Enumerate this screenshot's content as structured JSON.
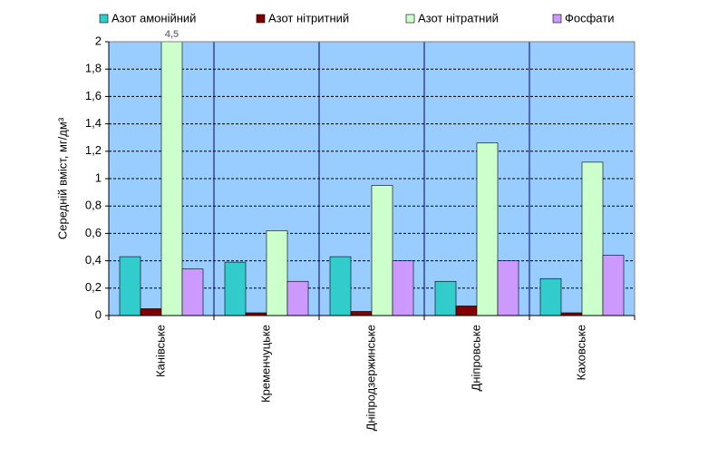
{
  "chart_data": {
    "type": "bar",
    "y_label": "Середній вміст, мг/дм³",
    "categories": [
      "Канівське",
      "Кременчуцьке",
      "Дніпродзержинське",
      "Дніпровське",
      "Каховське"
    ],
    "series": [
      {
        "name": "Азот амонійний",
        "color": "#33cccc",
        "values": [
          0.43,
          0.39,
          0.43,
          0.25,
          0.27
        ]
      },
      {
        "name": "Азот нітритний",
        "color": "#800000",
        "values": [
          0.05,
          0.02,
          0.03,
          0.07,
          0.02
        ]
      },
      {
        "name": "Азот нітратний",
        "color": "#ccffcc",
        "values": [
          4.5,
          0.62,
          0.95,
          1.26,
          1.12
        ],
        "value_labels": [
          "4,5",
          null,
          null,
          null,
          null
        ]
      },
      {
        "name": "Фосфати",
        "color": "#cc99ff",
        "values": [
          0.34,
          0.25,
          0.4,
          0.4,
          0.44
        ]
      }
    ],
    "ylim": [
      0,
      2
    ],
    "yticks": [
      0,
      {
        "value": 0.2,
        "label": "0,2"
      },
      {
        "value": 0.4,
        "label": "0,4"
      },
      {
        "value": 0.6,
        "label": "0,6"
      },
      {
        "value": 0.8,
        "label": "0,8"
      },
      1,
      {
        "value": 1.2,
        "label": "1,2"
      },
      {
        "value": 1.4,
        "label": "1,4"
      },
      {
        "value": 1.6,
        "label": "1,6"
      },
      {
        "value": 1.8,
        "label": "1,8"
      },
      2
    ],
    "grid": true,
    "legend": "top",
    "background": "#99ccff"
  }
}
